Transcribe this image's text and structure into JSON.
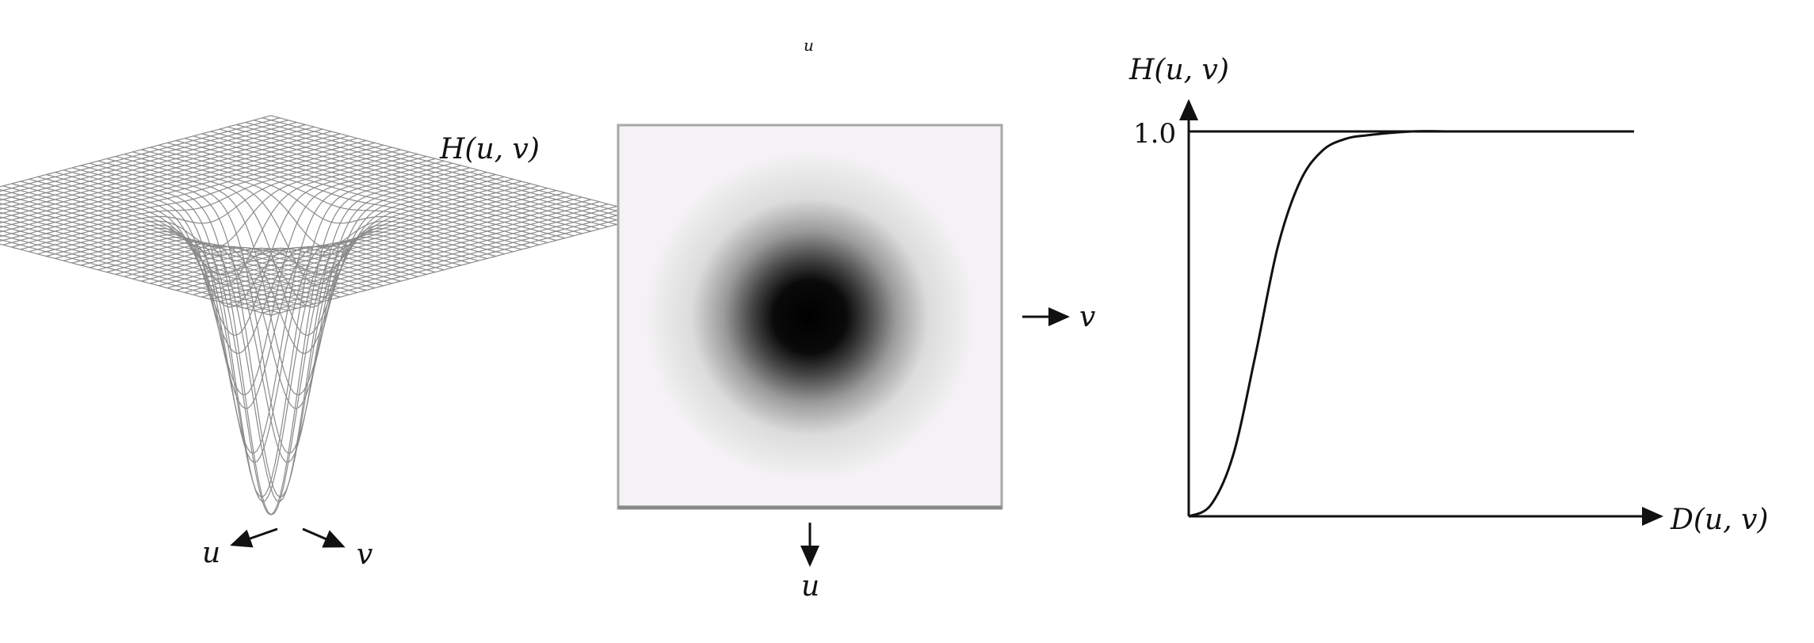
{
  "panels": {
    "surface": {
      "label_H": "H(u, v)",
      "label_u": "u",
      "label_v": "v"
    },
    "image": {
      "label_top": "u",
      "label_v": "v",
      "label_u": "u"
    },
    "profile": {
      "ylabel": "H(u, v)",
      "xlabel": "D(u, v)",
      "ytick": "1.0"
    }
  },
  "chart_data": {
    "type": "line",
    "title": "",
    "xlabel": "D(u, v)",
    "ylabel": "H(u, v)",
    "yticks": [
      "1.0"
    ],
    "ylim": [
      0,
      1.0
    ],
    "series": [
      {
        "x": [
          0,
          0.05,
          0.1,
          0.15,
          0.2,
          0.25,
          0.3,
          0.35,
          0.4,
          0.5,
          0.6,
          0.7,
          0.8,
          0.9,
          1.0
        ],
        "values": [
          0,
          0.03,
          0.16,
          0.42,
          0.7,
          0.87,
          0.95,
          0.98,
          0.99,
          1.0,
          1.0,
          1.0,
          1.0,
          1.0,
          1.0
        ]
      }
    ]
  },
  "colors": {
    "ink": "#111111",
    "mesh": "#8a8a8a",
    "frame": "#999999"
  }
}
